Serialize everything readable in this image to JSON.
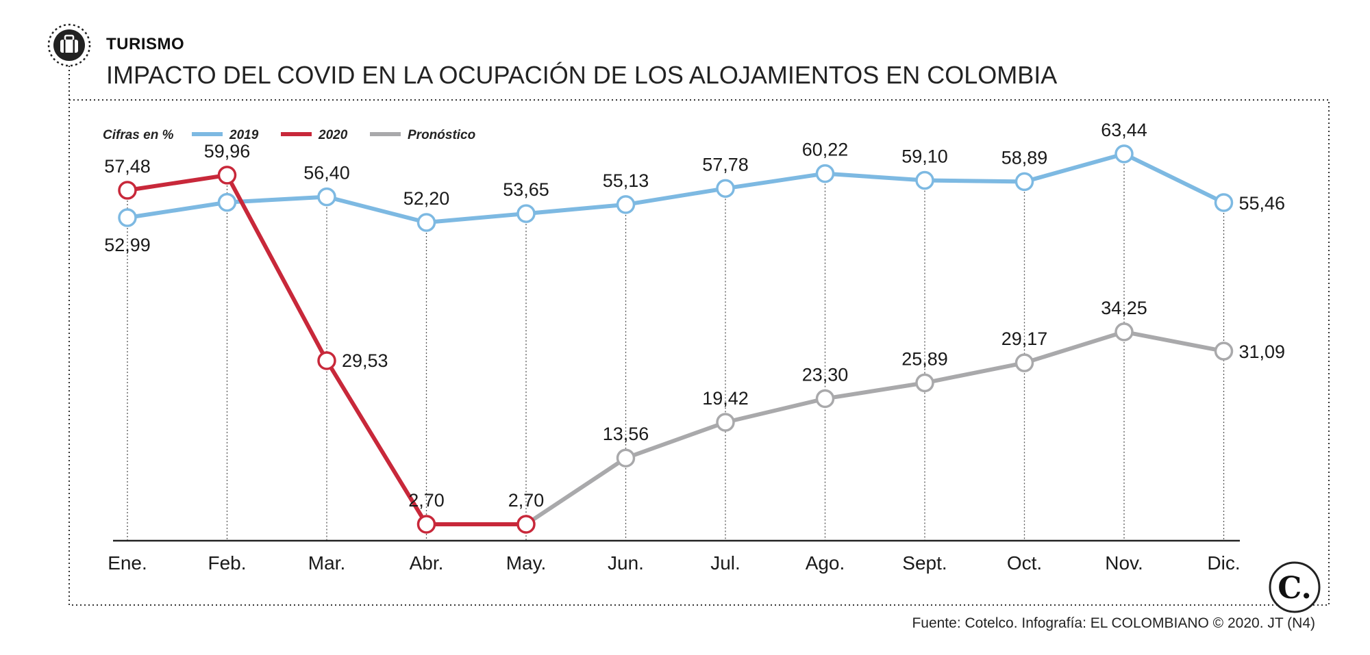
{
  "header": {
    "kicker": "TURISMO",
    "title": "IMPACTO DEL COVID EN LA OCUPACIÓN DE LOS ALOJAMIENTOS EN COLOMBIA",
    "icon": "suitcase-icon"
  },
  "legend": {
    "unit_label": "Cifras en %"
  },
  "footer": {
    "source": "Fuente: Cotelco. Infografía: EL COLOMBIANO © 2020. JT (N4)",
    "logo_letter": "C."
  },
  "colors": {
    "2019": "#7db9e2",
    "2020": "#c8283a",
    "forecast": "#a9a9ab"
  },
  "chart_data": {
    "type": "line",
    "categories": [
      "Ene.",
      "Feb.",
      "Mar.",
      "Abr.",
      "May.",
      "Jun.",
      "Jul.",
      "Ago.",
      "Sept.",
      "Oct.",
      "Nov.",
      "Dic."
    ],
    "ylim": [
      0,
      65
    ],
    "grid": "vertical dotted lines at each month",
    "legend_position": "top-left",
    "series": [
      {
        "name": "2019",
        "values": [
          52.99,
          55.5,
          56.4,
          52.2,
          53.65,
          55.13,
          57.78,
          60.22,
          59.1,
          58.89,
          63.44,
          55.46
        ],
        "labels": [
          "52,99",
          "",
          "56,40",
          "52,20",
          "53,65",
          "55,13",
          "57,78",
          "60,22",
          "59,10",
          "58,89",
          "63,44",
          "55,46"
        ]
      },
      {
        "name": "2020",
        "values": [
          57.48,
          59.96,
          29.53,
          2.7,
          2.7,
          null,
          null,
          null,
          null,
          null,
          null,
          null
        ],
        "labels": [
          "57,48",
          "59,96",
          "29,53",
          "2,70",
          "2,70",
          "",
          "",
          "",
          "",
          "",
          "",
          ""
        ]
      },
      {
        "name": "Pronóstico",
        "values": [
          null,
          null,
          null,
          null,
          2.7,
          13.56,
          19.42,
          23.3,
          25.89,
          29.17,
          34.25,
          31.09
        ],
        "labels": [
          "",
          "",
          "",
          "",
          "",
          "13,56",
          "19,42",
          "23,30",
          "25,89",
          "29,17",
          "34,25",
          "31,09"
        ]
      }
    ]
  }
}
